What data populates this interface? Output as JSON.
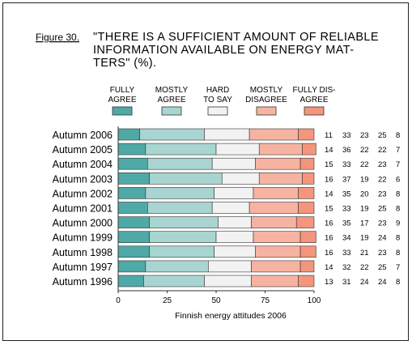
{
  "figure_label": "Figure 30.",
  "title_lines": [
    "\"THERE IS A SUFFICIENT AMOUNT OF RELIABLE",
    "INFORMATION AVAILABLE ON ENERGY MAT-",
    "TERS\" (%)."
  ],
  "colors": {
    "fully_agree": "#4fa9a6",
    "mostly_agree": "#a8d5d1",
    "hard_to_say": "#f2f2f2",
    "mostly_disagree": "#f7b3a1",
    "fully_disagree": "#f4957c"
  },
  "chart_data": {
    "type": "bar",
    "orientation": "horizontal",
    "stacked": true,
    "categories": [
      "Autumn 2006",
      "Autumn 2005",
      "Autumn 2004",
      "Autumn 2003",
      "Autumn 2002",
      "Autumn 2001",
      "Autumn 2000",
      "Autumn 1999",
      "Autumn 1998",
      "Autumn 1997",
      "Autumn 1996"
    ],
    "series": [
      {
        "name": "FULLY AGREE",
        "legend_lines": [
          "FULLY",
          "AGREE"
        ],
        "values": [
          11,
          14,
          15,
          16,
          14,
          15,
          16,
          16,
          16,
          14,
          13
        ]
      },
      {
        "name": "MOSTLY AGREE",
        "legend_lines": [
          "MOSTLY",
          "AGREE"
        ],
        "values": [
          33,
          36,
          33,
          37,
          35,
          33,
          35,
          34,
          33,
          32,
          31
        ]
      },
      {
        "name": "HARD TO SAY",
        "legend_lines": [
          "HARD",
          "TO SAY"
        ],
        "values": [
          23,
          22,
          22,
          19,
          20,
          19,
          17,
          19,
          21,
          22,
          24
        ]
      },
      {
        "name": "MOSTLY DISAGREE",
        "legend_lines": [
          "MOSTLY",
          "DISAGREE"
        ],
        "values": [
          25,
          22,
          23,
          22,
          23,
          25,
          23,
          24,
          23,
          25,
          24
        ]
      },
      {
        "name": "FULLY DISAGREE",
        "legend_lines": [
          "FULLY DIS-",
          "AGREE"
        ],
        "values": [
          8,
          7,
          7,
          6,
          8,
          8,
          9,
          8,
          8,
          7,
          8
        ]
      }
    ],
    "xlim": [
      0,
      100
    ],
    "xticks": [
      0,
      25,
      50,
      75,
      100
    ],
    "xlabel": "Finnish energy attitudes 2006",
    "ylabel": "",
    "legend_position": "top",
    "grid": false
  }
}
